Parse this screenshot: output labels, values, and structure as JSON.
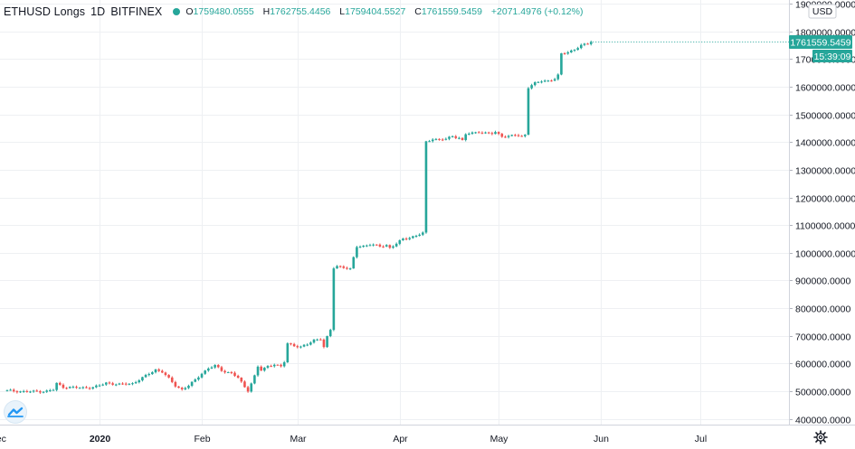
{
  "legend": {
    "symbol": "ETHUSD Longs",
    "interval": "1D",
    "exchange": "BITFINEX",
    "open_label": "O",
    "open": "1759480.0555",
    "high_label": "H",
    "high": "1762755.4456",
    "low_label": "L",
    "low": "1759404.5527",
    "close_label": "C",
    "close": "1761559.5459",
    "change": "+2071.4976 (+0.12%)",
    "up_color": "#26a69a",
    "down_color": "#ef5350"
  },
  "axis": {
    "currency": "USD",
    "last_price": "1761559.5459",
    "countdown": "15:39:09"
  },
  "icons": {
    "logo": "tradingview-logo-icon",
    "settings": "gear-icon"
  },
  "chart_data": {
    "type": "candlestick",
    "title": "ETHUSD Longs · 1D · BITFINEX",
    "ylim": [
      370000,
      1900000
    ],
    "y_ticks": [
      400000,
      500000,
      600000,
      700000,
      800000,
      900000,
      1000000,
      1100000,
      1200000,
      1300000,
      1400000,
      1500000,
      1600000,
      1700000,
      1800000,
      1900000
    ],
    "y_tick_labels": [
      "400000.0000",
      "500000.0000",
      "600000.0000",
      "700000.0000",
      "800000.0000",
      "900000.0000",
      "1000000.0000",
      "1100000.0000",
      "1200000.0000",
      "1300000.0000",
      "1400000.0000",
      "1500000.0000",
      "1600000.0000",
      "1700000.0000",
      "1800000.0000",
      "1900000.0000"
    ],
    "x_ticks": [
      {
        "label": "Dec",
        "day": -3
      },
      {
        "label": "2020",
        "day": 28
      },
      {
        "label": "Feb",
        "day": 59
      },
      {
        "label": "Mar",
        "day": 88
      },
      {
        "label": "Apr",
        "day": 119
      },
      {
        "label": "May",
        "day": 149
      },
      {
        "label": "Jun",
        "day": 180
      },
      {
        "label": "Jul",
        "day": 210
      }
    ],
    "xlim": [
      -3,
      237
    ],
    "close_path": [
      [
        0,
        502000
      ],
      [
        6,
        498000
      ],
      [
        12,
        500000
      ],
      [
        14,
        505000
      ],
      [
        15,
        528000
      ],
      [
        17,
        515000
      ],
      [
        22,
        512000
      ],
      [
        26,
        514000
      ],
      [
        28,
        520000
      ],
      [
        30,
        530000
      ],
      [
        34,
        524000
      ],
      [
        38,
        528000
      ],
      [
        42,
        555000
      ],
      [
        45,
        578000
      ],
      [
        47,
        570000
      ],
      [
        49,
        545000
      ],
      [
        51,
        520000
      ],
      [
        53,
        506000
      ],
      [
        55,
        520000
      ],
      [
        57,
        540000
      ],
      [
        59,
        565000
      ],
      [
        61,
        582000
      ],
      [
        63,
        592000
      ],
      [
        65,
        575000
      ],
      [
        68,
        565000
      ],
      [
        70,
        548000
      ],
      [
        72,
        515000
      ],
      [
        73,
        503000
      ],
      [
        75,
        555000
      ],
      [
        76,
        588000
      ],
      [
        77,
        575000
      ],
      [
        79,
        590000
      ],
      [
        81,
        598000
      ],
      [
        83,
        588000
      ],
      [
        84,
        605000
      ],
      [
        85,
        672000
      ],
      [
        87,
        665000
      ],
      [
        89,
        660000
      ],
      [
        91,
        668000
      ],
      [
        93,
        685000
      ],
      [
        95,
        690000
      ],
      [
        96,
        660000
      ],
      [
        97,
        695000
      ],
      [
        98,
        720000
      ],
      [
        99,
        945000
      ],
      [
        100,
        952000
      ],
      [
        102,
        948000
      ],
      [
        104,
        940000
      ],
      [
        106,
        1022000
      ],
      [
        108,
        1025000
      ],
      [
        110,
        1030000
      ],
      [
        113,
        1023000
      ],
      [
        115,
        1028000
      ],
      [
        116,
        1018000
      ],
      [
        118,
        1032000
      ],
      [
        120,
        1050000
      ],
      [
        122,
        1055000
      ],
      [
        124,
        1062000
      ],
      [
        126,
        1070000
      ],
      [
        127,
        1400000
      ],
      [
        129,
        1412000
      ],
      [
        131,
        1408000
      ],
      [
        133,
        1410000
      ],
      [
        135,
        1422000
      ],
      [
        137,
        1415000
      ],
      [
        138,
        1405000
      ],
      [
        139,
        1428000
      ],
      [
        141,
        1432000
      ],
      [
        143,
        1438000
      ],
      [
        145,
        1432000
      ],
      [
        147,
        1430000
      ],
      [
        148,
        1435000
      ],
      [
        150,
        1422000
      ],
      [
        152,
        1420000
      ],
      [
        154,
        1425000
      ],
      [
        156,
        1420000
      ],
      [
        157,
        1428000
      ],
      [
        158,
        1598000
      ],
      [
        160,
        1612000
      ],
      [
        162,
        1620000
      ],
      [
        164,
        1622000
      ],
      [
        166,
        1628000
      ],
      [
        167,
        1640000
      ],
      [
        168,
        1718000
      ],
      [
        170,
        1725000
      ],
      [
        172,
        1735000
      ],
      [
        174,
        1748000
      ],
      [
        176,
        1755000
      ],
      [
        177,
        1761559.5459
      ]
    ]
  }
}
